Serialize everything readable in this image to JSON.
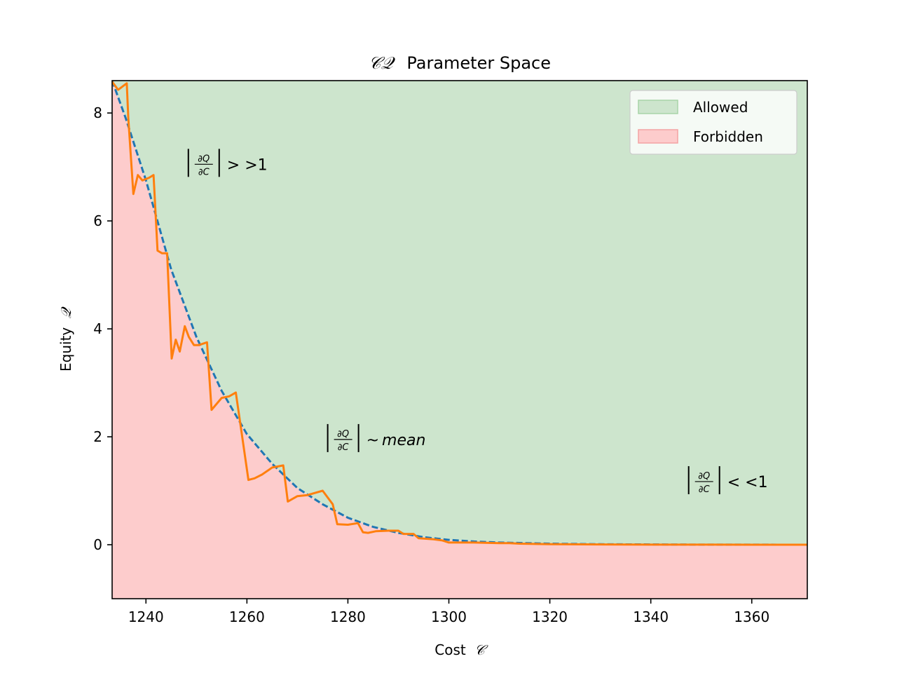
{
  "chart_data": {
    "type": "area",
    "title_prefix": "𝒞𝒬",
    "title_text": "Parameter Space",
    "xlabel_text": "Cost",
    "xlabel_symbol": "𝒞",
    "ylabel_text": "Equity",
    "ylabel_symbol": "𝒬",
    "xlim": [
      1233.3,
      1371.0
    ],
    "ylim": [
      -1.0,
      8.6
    ],
    "x_ticks": [
      1240,
      1260,
      1280,
      1300,
      1320,
      1340,
      1360
    ],
    "y_ticks": [
      0,
      2,
      4,
      6,
      8
    ],
    "x_tick_labels": [
      "1240",
      "1260",
      "1280",
      "1300",
      "1320",
      "1340",
      "1360"
    ],
    "y_tick_labels": [
      "0",
      "2",
      "4",
      "6",
      "8"
    ],
    "legend": [
      {
        "label": "Allowed",
        "color": "#cde5cd"
      },
      {
        "label": "Forbidden",
        "color": "#fdcccc"
      }
    ],
    "legend_placement": "top-right",
    "colors": {
      "allowed": "#cde5cd",
      "forbidden": "#fdcccc",
      "boundary": "#1f77b4",
      "sampled": "#ff7f0e"
    },
    "boundary_curve": {
      "x": [
        1233.3,
        1236,
        1240,
        1245,
        1250,
        1255,
        1260,
        1265,
        1270,
        1275,
        1280,
        1285,
        1290,
        1295,
        1300,
        1305,
        1310,
        1320,
        1330,
        1340,
        1350,
        1360,
        1371
      ],
      "y": [
        8.6,
        7.9,
        6.75,
        5.1,
        3.85,
        2.85,
        2.05,
        1.5,
        1.05,
        0.75,
        0.5,
        0.33,
        0.22,
        0.14,
        0.09,
        0.06,
        0.04,
        0.02,
        0.01,
        0.005,
        0.002,
        0.001,
        0.0
      ]
    },
    "sampled_curve": {
      "x": [
        1233.3,
        1234.5,
        1236.2,
        1236.5,
        1237.5,
        1238.4,
        1239.3,
        1240.6,
        1241.5,
        1242.3,
        1243.2,
        1244.2,
        1245.1,
        1245.9,
        1246.7,
        1247.7,
        1248.5,
        1249.5,
        1250.5,
        1252.1,
        1253.0,
        1255.0,
        1256.5,
        1257.8,
        1258.6,
        1260.3,
        1261.5,
        1263.0,
        1265.0,
        1267.2,
        1268.1,
        1270.0,
        1272.0,
        1275.0,
        1277.0,
        1277.9,
        1280.0,
        1282.0,
        1283.0,
        1284.0,
        1285.5,
        1288.0,
        1290.0,
        1291.0,
        1293.0,
        1294.0,
        1297.0,
        1298.7,
        1300.0,
        1305.0,
        1310.0,
        1312.0,
        1314.0,
        1320.0,
        1330.0,
        1340.0,
        1350.0,
        1360.0,
        1371.0
      ],
      "y": [
        8.58,
        8.43,
        8.55,
        7.9,
        6.5,
        6.85,
        6.75,
        6.8,
        6.85,
        5.45,
        5.4,
        5.4,
        3.45,
        3.8,
        3.58,
        4.05,
        3.85,
        3.7,
        3.7,
        3.75,
        2.5,
        2.72,
        2.75,
        2.82,
        2.3,
        1.2,
        1.23,
        1.3,
        1.43,
        1.47,
        0.8,
        0.9,
        0.92,
        1.0,
        0.75,
        0.38,
        0.37,
        0.4,
        0.23,
        0.22,
        0.25,
        0.26,
        0.26,
        0.2,
        0.2,
        0.12,
        0.1,
        0.08,
        0.04,
        0.04,
        0.03,
        0.03,
        0.02,
        0.01,
        0.005,
        0.002,
        0.001,
        0.0,
        0.0
      ]
    },
    "annotations": [
      {
        "num": "∂Q",
        "den": "∂C",
        "relation": "> >1",
        "italic": false,
        "x": 1248.4,
        "y": 7.05
      },
      {
        "num": "∂Q",
        "den": "∂C",
        "relation": "~",
        "relation_italic": "mean",
        "italic": true,
        "x": 1276.0,
        "y": 1.95
      },
      {
        "num": "∂Q",
        "den": "∂C",
        "relation": "< <1",
        "italic": false,
        "x": 1347.5,
        "y": 1.17
      }
    ]
  }
}
